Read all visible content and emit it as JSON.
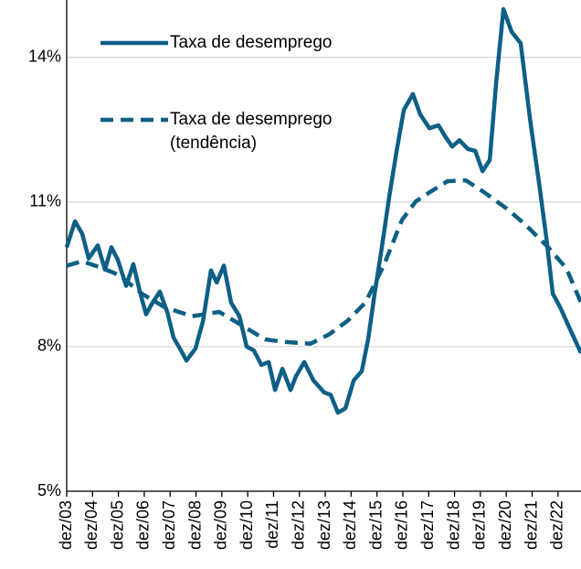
{
  "chart_data": {
    "type": "line",
    "xlim": [
      2003.92,
      2023.81
    ],
    "ylim": [
      5,
      15
    ],
    "yticks": [
      {
        "value": 5,
        "label": "5%"
      },
      {
        "value": 8,
        "label": "8%"
      },
      {
        "value": 11,
        "label": "11%"
      },
      {
        "value": 14,
        "label": "14%"
      }
    ],
    "xticks": [
      {
        "value": 2003.92,
        "label": "dez/03"
      },
      {
        "value": 2004.92,
        "label": "dez/04"
      },
      {
        "value": 2005.92,
        "label": "dez/05"
      },
      {
        "value": 2006.92,
        "label": "dez/06"
      },
      {
        "value": 2007.92,
        "label": "dez/07"
      },
      {
        "value": 2008.92,
        "label": "dez/08"
      },
      {
        "value": 2009.92,
        "label": "dez/09"
      },
      {
        "value": 2010.92,
        "label": "dez/10"
      },
      {
        "value": 2011.92,
        "label": "dez/11"
      },
      {
        "value": 2012.92,
        "label": "dez/12"
      },
      {
        "value": 2013.92,
        "label": "dez/13"
      },
      {
        "value": 2014.92,
        "label": "dez/14"
      },
      {
        "value": 2015.92,
        "label": "dez/15"
      },
      {
        "value": 2016.92,
        "label": "dez/16"
      },
      {
        "value": 2017.92,
        "label": "dez/17"
      },
      {
        "value": 2018.92,
        "label": "dez/18"
      },
      {
        "value": 2019.92,
        "label": "dez/19"
      },
      {
        "value": 2020.92,
        "label": "dez/20"
      },
      {
        "value": 2021.92,
        "label": "dez/21"
      },
      {
        "value": 2022.92,
        "label": "dez/22"
      }
    ],
    "grid": true,
    "legend": "upper left",
    "series": [
      {
        "name": "Taxa de desemprego",
        "color": "#0e5f86",
        "dash": false,
        "x": [
          2003.92,
          2004.24,
          2004.52,
          2004.77,
          2005.12,
          2005.4,
          2005.65,
          2005.9,
          2006.22,
          2006.5,
          2006.75,
          2006.99,
          2007.24,
          2007.52,
          2007.81,
          2008.05,
          2008.34,
          2008.55,
          2008.9,
          2009.19,
          2009.5,
          2009.72,
          2010.0,
          2010.28,
          2010.6,
          2010.88,
          2011.16,
          2011.45,
          2011.73,
          2011.98,
          2012.26,
          2012.58,
          2012.79,
          2013.11,
          2013.46,
          2013.88,
          2014.13,
          2014.41,
          2014.7,
          2015.02,
          2015.33,
          2015.58,
          2015.83,
          2016.11,
          2016.39,
          2016.68,
          2016.96,
          2017.31,
          2017.59,
          2017.95,
          2018.3,
          2018.58,
          2018.83,
          2019.11,
          2019.43,
          2019.72,
          2020.0,
          2020.28,
          2020.53,
          2020.81,
          2021.13,
          2021.48,
          2021.84,
          2022.19,
          2022.47,
          2022.72,
          2023.0,
          2023.32,
          2023.6,
          2023.81
        ],
        "values": [
          10.06,
          10.6,
          10.34,
          9.83,
          10.1,
          9.6,
          10.06,
          9.8,
          9.26,
          9.71,
          9.14,
          8.67,
          8.91,
          9.14,
          8.72,
          8.19,
          7.92,
          7.71,
          7.96,
          8.53,
          9.58,
          9.33,
          9.68,
          8.91,
          8.63,
          8.0,
          7.92,
          7.62,
          7.68,
          7.1,
          7.54,
          7.1,
          7.39,
          7.68,
          7.3,
          7.05,
          7.0,
          6.63,
          6.72,
          7.3,
          7.49,
          8.15,
          9.1,
          10.06,
          11.1,
          12.06,
          12.91,
          13.24,
          12.82,
          12.53,
          12.59,
          12.34,
          12.15,
          12.28,
          12.1,
          12.06,
          11.64,
          11.87,
          13.49,
          15.0,
          14.53,
          14.29,
          12.72,
          11.39,
          10.25,
          9.1,
          8.82,
          8.44,
          8.11,
          7.87
        ]
      },
      {
        "name": "Taxa de desemprego (tendência)",
        "color": "#0e5f86",
        "dash": true,
        "x": [
          2003.92,
          2004.52,
          2005.23,
          2005.93,
          2006.82,
          2007.7,
          2008.76,
          2009.82,
          2010.7,
          2011.59,
          2012.29,
          2013.35,
          2014.06,
          2014.77,
          2015.47,
          2016.18,
          2016.89,
          2017.42,
          2017.95,
          2018.65,
          2019.36,
          2020.07,
          2020.95,
          2021.66,
          2022.54,
          2023.25,
          2023.81
        ],
        "values": [
          9.68,
          9.77,
          9.64,
          9.49,
          9.1,
          8.82,
          8.63,
          8.72,
          8.44,
          8.15,
          8.1,
          8.06,
          8.25,
          8.53,
          8.91,
          9.68,
          10.63,
          11.01,
          11.2,
          11.43,
          11.45,
          11.2,
          10.86,
          10.53,
          10.06,
          9.62,
          8.91
        ]
      }
    ]
  }
}
